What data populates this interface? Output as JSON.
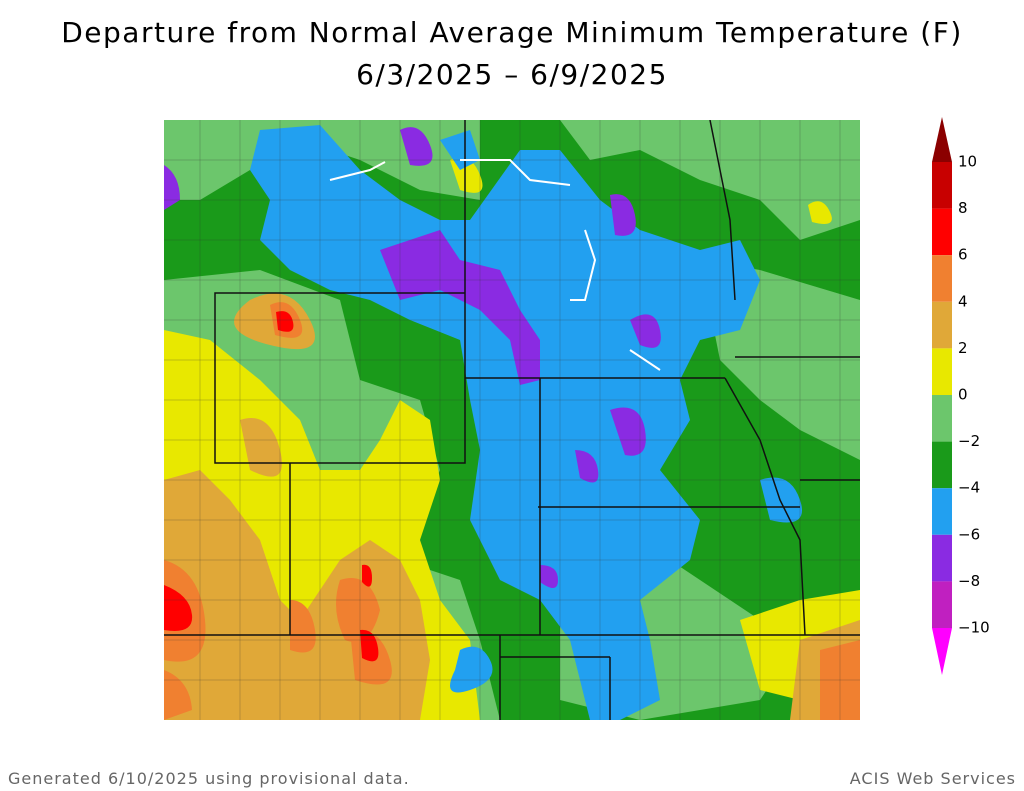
{
  "header": {
    "title": "Departure from Normal Average Minimum Temperature (F)",
    "subtitle": "6/3/2025 – 6/9/2025"
  },
  "legend": {
    "labels": [
      "10",
      "8",
      "6",
      "4",
      "2",
      "0",
      "−2",
      "−4",
      "−6",
      "−8",
      "−10"
    ],
    "colors": [
      "#8b0000",
      "#c80000",
      "#ff0000",
      "#f08030",
      "#e0a838",
      "#e8e800",
      "#6cc66c",
      "#1a9a1a",
      "#22a0f0",
      "#8a2be2",
      "#c020c0",
      "#ff00ff"
    ]
  },
  "footer": {
    "left": "Generated 6/10/2025 using provisional data.",
    "right": "ACIS Web Services"
  }
}
